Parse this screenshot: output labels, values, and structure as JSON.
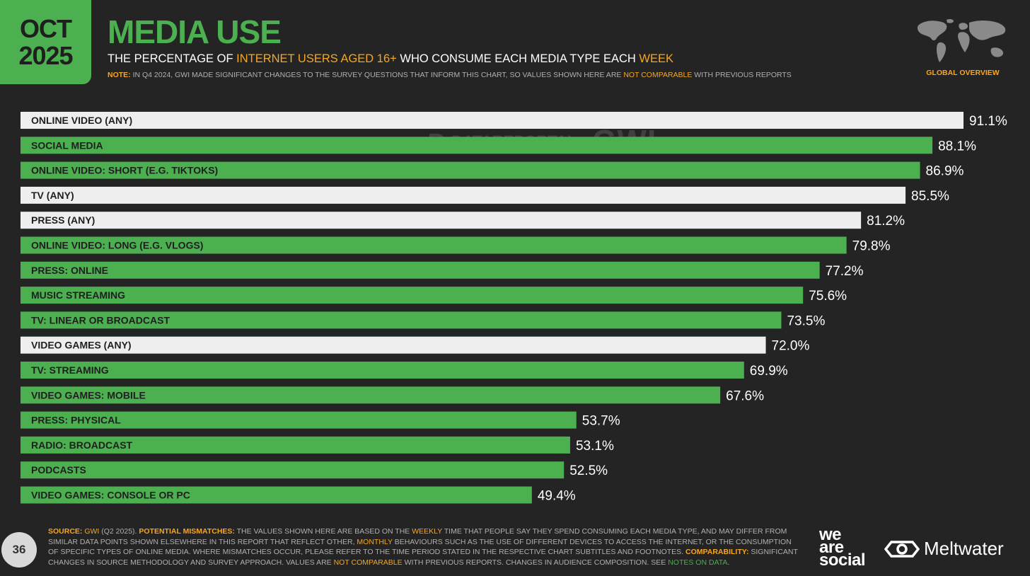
{
  "header": {
    "month": "OCT",
    "year": "2025",
    "title": "MEDIA USE",
    "subtitle": {
      "p1": "THE PERCENTAGE OF ",
      "h1": "INTERNET USERS AGED 16+",
      "p2": " WHO CONSUME EACH MEDIA TYPE EACH ",
      "h2": "WEEK"
    },
    "note": {
      "label": "NOTE:",
      "p1": " IN Q4 2024, GWI MADE SIGNIFICANT CHANGES TO THE SURVEY QUESTIONS THAT INFORM THIS CHART, SO VALUES SHOWN HERE ARE ",
      "h1": "NOT COMPARABLE",
      "p2": " WITH PREVIOUS REPORTS"
    },
    "region": "GLOBAL OVERVIEW"
  },
  "watermark": {
    "left": "DATAREPORTAL",
    "right": "GWI."
  },
  "colors": {
    "green": "#4caf50",
    "white_bar": "#eeeeee",
    "accent": "#f5a623",
    "background": "#242424"
  },
  "chart_data": {
    "type": "bar",
    "orientation": "horizontal",
    "unit": "%",
    "title": "MEDIA USE",
    "xlim": [
      0,
      100
    ],
    "categories": [
      "ONLINE VIDEO (ANY)",
      "SOCIAL MEDIA",
      "ONLINE VIDEO: SHORT (E.G. TIKTOKS)",
      "TV (ANY)",
      "PRESS (ANY)",
      "ONLINE VIDEO: LONG (E.G. VLOGS)",
      "PRESS: ONLINE",
      "MUSIC STREAMING",
      "TV: LINEAR OR BROADCAST",
      "VIDEO GAMES (ANY)",
      "TV: STREAMING",
      "VIDEO GAMES: MOBILE",
      "PRESS: PHYSICAL",
      "RADIO: BROADCAST",
      "PODCASTS",
      "VIDEO GAMES: CONSOLE OR PC"
    ],
    "values": [
      91.1,
      88.1,
      86.9,
      85.5,
      81.2,
      79.8,
      77.2,
      75.6,
      73.5,
      72.0,
      69.9,
      67.6,
      53.7,
      53.1,
      52.5,
      49.4
    ],
    "labels": [
      "91.1%",
      "88.1%",
      "86.9%",
      "85.5%",
      "81.2%",
      "79.8%",
      "77.2%",
      "75.6%",
      "73.5%",
      "72.0%",
      "69.9%",
      "67.6%",
      "53.7%",
      "53.1%",
      "52.5%",
      "49.4%"
    ],
    "aggregate": [
      true,
      false,
      false,
      true,
      true,
      false,
      false,
      false,
      false,
      true,
      false,
      false,
      false,
      false,
      false,
      false
    ]
  },
  "footer": {
    "source_label": "SOURCE:",
    "source": " GWI",
    "source_period": " (Q2 2025). ",
    "mismatch_label": "POTENTIAL MISMATCHES:",
    "mismatch_p1": " THE VALUES SHOWN HERE ARE BASED ON THE ",
    "weekly": "WEEKLY",
    "mismatch_p2": " TIME THAT PEOPLE SAY THEY SPEND CONSUMING EACH MEDIA TYPE, AND MAY DIFFER FROM SIMILAR DATA POINTS SHOWN ELSEWHERE IN THIS REPORT THAT REFLECT OTHER, ",
    "monthly": "MONTHLY",
    "mismatch_p3": " BEHAVIOURS SUCH AS THE USE OF DIFFERENT DEVICES TO ACCESS THE INTERNET, OR THE CONSUMPTION OF SPECIFIC TYPES OF ONLINE MEDIA. WHERE MISMATCHES OCCUR, PLEASE REFER TO THE TIME PERIOD STATED IN THE RESPECTIVE CHART SUBTITLES AND FOOTNOTES. ",
    "comparability_label": "COMPARABILITY:",
    "comparability_p1": " SIGNIFICANT CHANGES IN SOURCE METHODOLOGY AND SURVEY APPROACH. VALUES ARE ",
    "not_comparable": "NOT COMPARABLE",
    "comparability_p2": " WITH PREVIOUS REPORTS. CHANGES IN AUDIENCE COMPOSITION. SEE ",
    "notes_link": "NOTES ON DATA",
    "end": ".",
    "page_number": "36",
    "brand_1_line1": "we",
    "brand_1_line2": "are",
    "brand_1_line3": "social",
    "brand_2": "Meltwater"
  }
}
